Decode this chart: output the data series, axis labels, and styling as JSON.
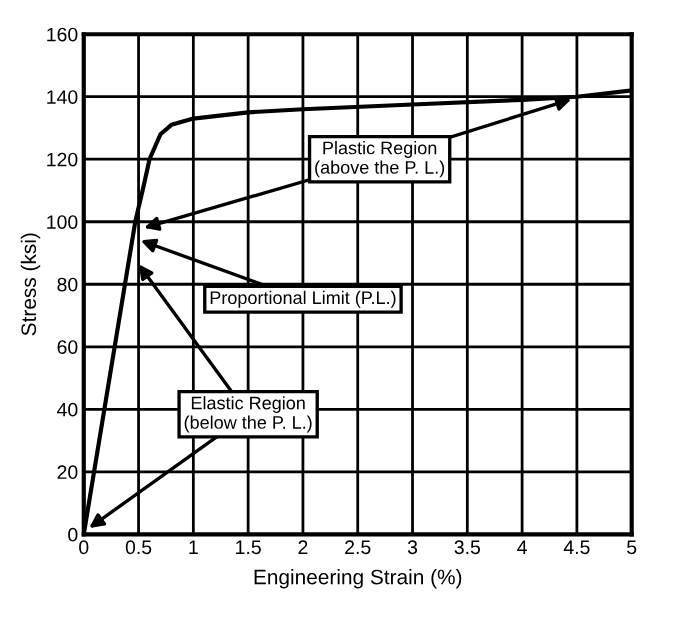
{
  "chart_data": {
    "type": "line",
    "xlabel": "Engineering Strain (%)",
    "ylabel": "Stress (ksi)",
    "x": [
      0,
      0.47,
      0.55,
      0.6,
      0.7,
      0.8,
      1.0,
      1.5,
      2.0,
      3.0,
      4.0,
      4.5,
      5.0
    ],
    "series": [
      {
        "color": "#000000",
        "values": [
          0,
          100,
          112,
          120,
          128,
          131,
          133,
          135,
          136,
          137.5,
          139,
          140,
          142
        ]
      }
    ],
    "xlim": [
      0,
      5
    ],
    "xticks": [
      0,
      0.5,
      1,
      1.5,
      2,
      2.5,
      3,
      3.5,
      4,
      4.5,
      5
    ],
    "ylim": [
      0,
      160
    ],
    "yticks": [
      0,
      20,
      40,
      60,
      80,
      100,
      120,
      140,
      160
    ],
    "grid": true,
    "marker": "none",
    "line_style": "solid",
    "annotations": [
      {
        "text": "Plastic Region\n(above the P. L.)",
        "x": 0.55,
        "y": 98
      },
      {
        "text": "Proportional Limit (P.L.)",
        "x": 0.52,
        "y": 94
      },
      {
        "text": "Elastic Region\n(below the P. L.)",
        "x": 0.05,
        "y": 2
      }
    ]
  }
}
